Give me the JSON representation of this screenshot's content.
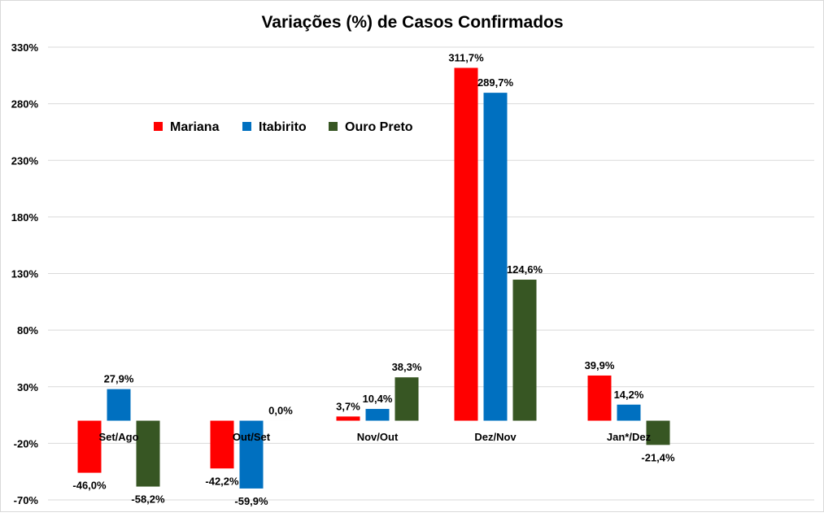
{
  "chart_data": {
    "type": "bar",
    "title": "Variações (%) de Casos Confirmados",
    "xlabel": "",
    "ylabel": "",
    "categories": [
      "Set/Ago",
      "Out/Set",
      "Nov/Out",
      "Dez/Nov",
      "Jan*/Dez"
    ],
    "series": [
      {
        "name": "Mariana",
        "color": "#ff0000",
        "values": [
          -46.0,
          -42.2,
          3.7,
          311.7,
          39.9
        ],
        "labels": [
          "-46,0%",
          "-42,2%",
          "3,7%",
          "311,7%",
          "39,9%"
        ]
      },
      {
        "name": "Itabirito",
        "color": "#0070c0",
        "values": [
          27.9,
          -59.9,
          10.4,
          289.7,
          14.2
        ],
        "labels": [
          "27,9%",
          "-59,9%",
          "10,4%",
          "289,7%",
          "14,2%"
        ]
      },
      {
        "name": "Ouro Preto",
        "color": "#375623",
        "values": [
          -58.2,
          0.0,
          38.3,
          124.6,
          -21.4
        ],
        "labels": [
          "-58,2%",
          "0,0%",
          "38,3%",
          "124,6%",
          "-21,4%"
        ]
      }
    ],
    "ylim": [
      -70,
      330
    ],
    "yticks": [
      -70,
      -20,
      30,
      80,
      130,
      180,
      230,
      280,
      330
    ],
    "ytick_labels": [
      "-70%",
      "-20%",
      "30%",
      "80%",
      "130%",
      "180%",
      "230%",
      "280%",
      "330%"
    ],
    "grid": true,
    "legend_position": "top-left"
  }
}
